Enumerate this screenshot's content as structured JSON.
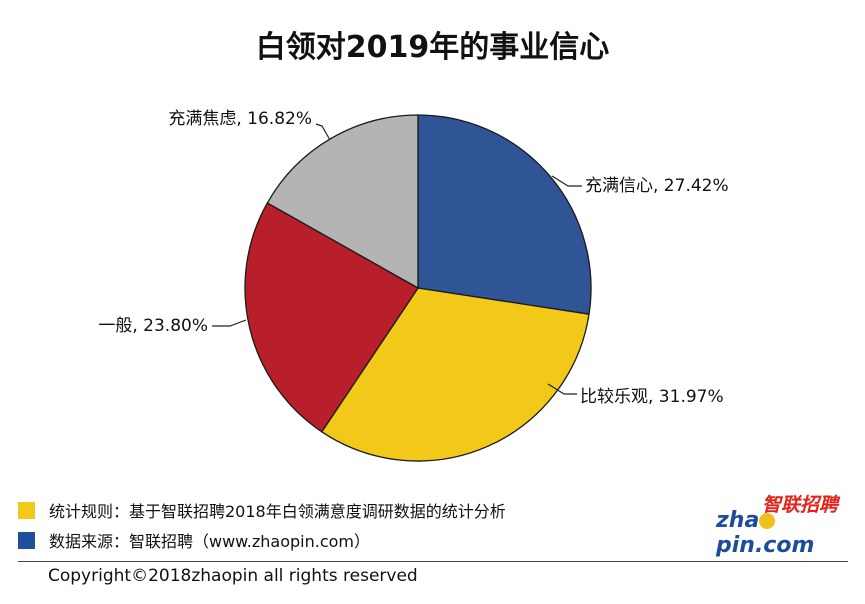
{
  "chart_data": {
    "type": "pie",
    "title": "白领对2019年的事业信心",
    "slices": [
      {
        "label": "充满信心",
        "value": 27.42,
        "display": "充满信心, 27.42%",
        "color": "#2f5597"
      },
      {
        "label": "比较乐观",
        "value": 31.97,
        "display": "比较乐观, 31.97%",
        "color": "#f2c919"
      },
      {
        "label": "一般",
        "value": 23.8,
        "display": "一般, 23.80%",
        "color": "#b81f2b"
      },
      {
        "label": "充满焦虑",
        "value": 16.82,
        "display": "充满焦虑, 16.82%",
        "color": "#b4b4b4"
      }
    ],
    "start_angle_deg": 0,
    "direction": "clockwise"
  },
  "notes": [
    {
      "text": "统计规则：基于智联招聘2018年白领满意度调研数据的统计分析",
      "color": "#f2c919"
    },
    {
      "text": "数据来源：智联招聘（www.zhaopin.com）",
      "color": "#1f4e9c"
    }
  ],
  "logo": {
    "cn": "智联招聘",
    "en_pre": "zha",
    "en_post": "pin.com"
  },
  "copyright": "Copyright©2018zhaopin all rights reserved"
}
